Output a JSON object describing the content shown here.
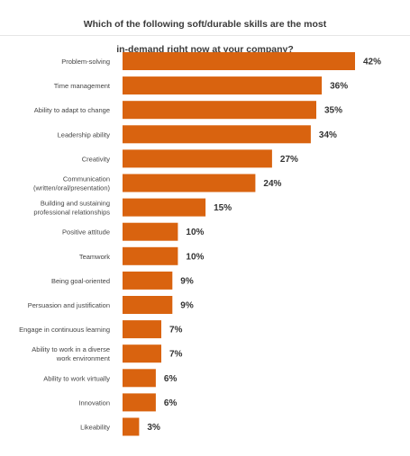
{
  "chart_data": {
    "type": "bar",
    "orientation": "horizontal",
    "title_lines": [
      "Which of the following soft/durable skills are the most",
      "in-demand right now at your company?"
    ],
    "categories": [
      [
        "Problem-solving"
      ],
      [
        "Time management"
      ],
      [
        "Ability to adapt to change"
      ],
      [
        "Leadership ability"
      ],
      [
        "Creativity"
      ],
      [
        "Communication",
        "(written/oral/presentation)"
      ],
      [
        "Building and sustaining",
        "professional relationships"
      ],
      [
        "Positive attitude"
      ],
      [
        "Teamwork"
      ],
      [
        "Being goal-oriented"
      ],
      [
        "Persuasion and justification"
      ],
      [
        "Engage in continuous learning"
      ],
      [
        "Ability to work in a diverse",
        "work environment"
      ],
      [
        "Ability to work virtually"
      ],
      [
        "Innovation"
      ],
      [
        "Likeability"
      ]
    ],
    "values": [
      42,
      36,
      35,
      34,
      27,
      24,
      15,
      10,
      10,
      9,
      9,
      7,
      7,
      6,
      6,
      3
    ],
    "value_labels": [
      "42%",
      "36%",
      "35%",
      "34%",
      "27%",
      "24%",
      "15%",
      "10%",
      "10%",
      "9%",
      "9%",
      "7%",
      "7%",
      "6%",
      "6%",
      "3%"
    ],
    "unit": "%",
    "xlim": [
      0,
      42
    ],
    "grid": false,
    "legend": "none",
    "colors": {
      "bar": "#d9630f",
      "label": "#444444",
      "value": "#333333",
      "title": "#3a3a3a"
    }
  }
}
